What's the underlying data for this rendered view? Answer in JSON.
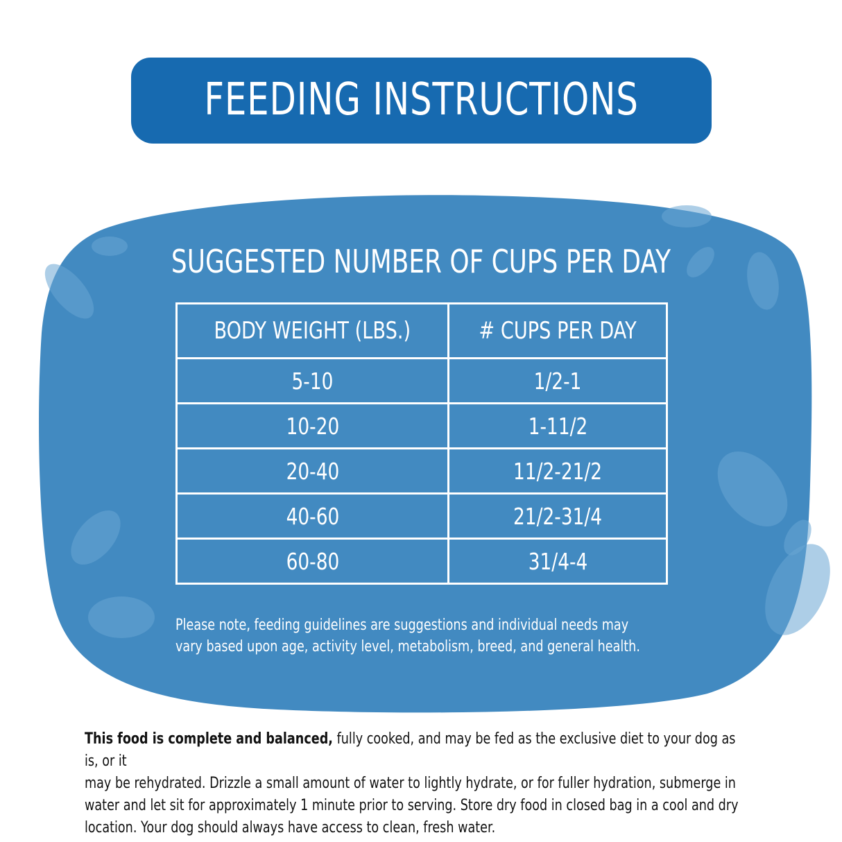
{
  "title": "FEEDING INSTRUCTIONS",
  "subtitle": "SUGGESTED NUMBER OF CUPS PER DAY",
  "table": {
    "headers": [
      "BODY WEIGHT (LBS.)",
      "# CUPS PER DAY"
    ],
    "rows": [
      [
        "5-10",
        "1/2-1"
      ],
      [
        "10-20",
        "1-11/2"
      ],
      [
        "20-40",
        "11/2-21/2"
      ],
      [
        "40-60",
        "21/2-31/4"
      ],
      [
        "60-80",
        "31/4-4"
      ]
    ]
  },
  "note": {
    "line1": "Please note, feeding guidelines are suggestions and individual needs may",
    "line2": "vary based upon age, activity level, metabolism, breed, and general health."
  },
  "footer": {
    "bold": "This food is complete and balanced,",
    "line1": " fully cooked, and may be fed as the exclusive diet to your dog as is, or it",
    "line2": "may be rehydrated. Drizzle a small amount of water to lightly hydrate, or for fuller hydration, submerge in",
    "line3": "water and let sit for approximately 1 minute prior to serving. Store dry food in closed bag in a cool and dry",
    "line4": "location. Your dog should always have access to clean, fresh water."
  },
  "colors": {
    "banner": "#176ab0",
    "panel": "#428ac1",
    "bubble": "#6aa6d3",
    "text_dark": "#111111"
  }
}
